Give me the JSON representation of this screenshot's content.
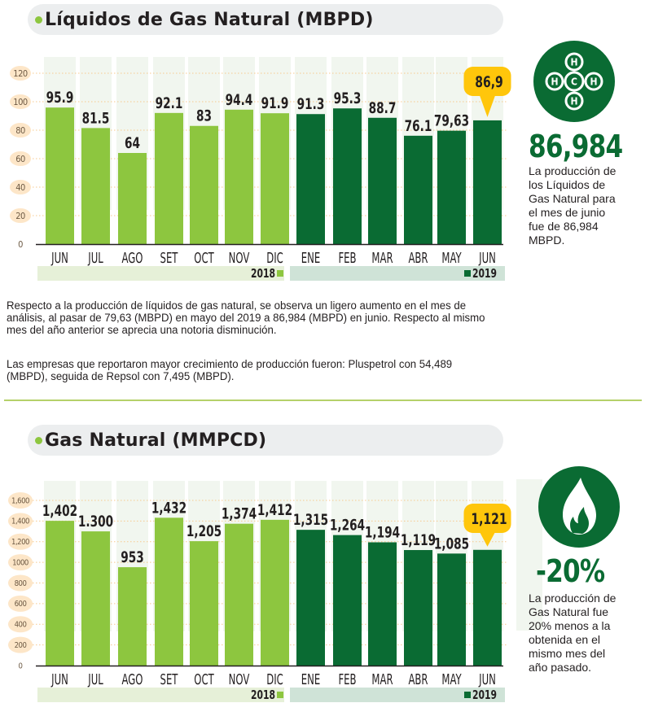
{
  "colors": {
    "bar_2018": "#8dc63f",
    "bar_2019": "#0a6b33",
    "callout": "#ffc60b",
    "tick_bubble": "#fde6c8",
    "grid": "#f7c98e",
    "column_bg": "#f1f6ef",
    "legend_2018_bg": "#e6f0d8",
    "legend_2019_bg": "#cfe3d7",
    "title_pill": "#eceeef"
  },
  "section1": {
    "title": "Líquidos de Gas Natural (MBPD)",
    "highlight_value": "86,984",
    "highlight_text": [
      "La producción de",
      "los Líquidos de",
      "Gas Natural para",
      "el mes de junio",
      "fue de 86,984",
      "MBPD."
    ],
    "icon": "methane-molecule-icon",
    "molecule_labels": {
      "center": "C",
      "atoms": [
        "H",
        "H",
        "H",
        "H"
      ]
    },
    "paragraphs": [
      [
        "Respecto a la producción de líquidos de gas natural, se observa un ligero aumento en el mes de",
        "análisis, al pasar de 79,63 (MBPD) en mayo del 2019 a 86,984 (MBPD) en junio. Respecto al mismo",
        "mes del año anterior se aprecia una notoria disminución."
      ],
      [
        "Las empresas que reportaron mayor crecimiento de producción fueron: Pluspetrol con 54,489",
        "(MBPD), seguida de Repsol con 7,495 (MBPD)."
      ]
    ]
  },
  "section2": {
    "title": "Gas Natural (MMPCD)",
    "highlight_value": "-20%",
    "highlight_text": [
      "La producción de",
      "Gas Natural fue",
      "20% menos a la",
      "obtenida en el",
      "mismo mes del",
      "año pasado."
    ],
    "icon": "flame-icon"
  },
  "chart_data": [
    {
      "type": "bar",
      "title": "Líquidos de Gas Natural (MBPD)",
      "xlabel": "",
      "ylabel": "",
      "categories": [
        "JUN",
        "JUL",
        "AGO",
        "SET",
        "OCT",
        "NOV",
        "DIC",
        "ENE",
        "FEB",
        "MAR",
        "ABR",
        "MAY",
        "JUN"
      ],
      "values": [
        95.9,
        81.5,
        64,
        92.1,
        83,
        94.4,
        91.9,
        91.3,
        95.3,
        88.7,
        76.1,
        79.63,
        86.9
      ],
      "value_labels": [
        "95.9",
        "81.5",
        "64",
        "92.1",
        "83",
        "94.4",
        "91.9",
        "91.3",
        "95.3",
        "88.7",
        "76.1",
        "79,63",
        "86,9"
      ],
      "years": [
        "2018",
        "2018",
        "2018",
        "2018",
        "2018",
        "2018",
        "2018",
        "2019",
        "2019",
        "2019",
        "2019",
        "2019",
        "2019"
      ],
      "highlight_index": 12,
      "ylim": [
        0,
        120
      ],
      "yticks": [
        0,
        20,
        40,
        60,
        80,
        100,
        120
      ],
      "ytick_labels": [
        "0",
        "20",
        "40",
        "60",
        "80",
        "100",
        "120"
      ],
      "grid": true,
      "legend": [
        {
          "name": "2018",
          "placement": "bottom-left"
        },
        {
          "name": "2019",
          "placement": "bottom-right"
        }
      ]
    },
    {
      "type": "bar",
      "title": "Gas Natural (MMPCD)",
      "xlabel": "",
      "ylabel": "",
      "categories": [
        "JUN",
        "JUL",
        "AGO",
        "SET",
        "OCT",
        "NOV",
        "DIC",
        "ENE",
        "FEB",
        "MAR",
        "ABR",
        "MAY",
        "JUN"
      ],
      "values": [
        1402,
        1300,
        953,
        1432,
        1205,
        1374,
        1412,
        1315,
        1264,
        1194,
        1119,
        1085,
        1121
      ],
      "value_labels": [
        "1,402",
        "1.300",
        "953",
        "1,432",
        "1,205",
        "1,374",
        "1,412",
        "1,315",
        "1,264",
        "1,194",
        "1,119",
        "1,085",
        "1,121"
      ],
      "years": [
        "2018",
        "2018",
        "2018",
        "2018",
        "2018",
        "2018",
        "2018",
        "2019",
        "2019",
        "2019",
        "2019",
        "2019",
        "2019"
      ],
      "highlight_index": 12,
      "ylim": [
        0,
        1600
      ],
      "yticks": [
        0,
        200,
        400,
        600,
        800,
        1000,
        1200,
        1400,
        1600
      ],
      "ytick_labels": [
        "0",
        "200",
        "400",
        "600",
        "800",
        "1000",
        "1,200",
        "1,400",
        "1,600"
      ],
      "grid": true,
      "legend": [
        {
          "name": "2018",
          "placement": "bottom-left"
        },
        {
          "name": "2019",
          "placement": "bottom-right"
        }
      ]
    }
  ]
}
